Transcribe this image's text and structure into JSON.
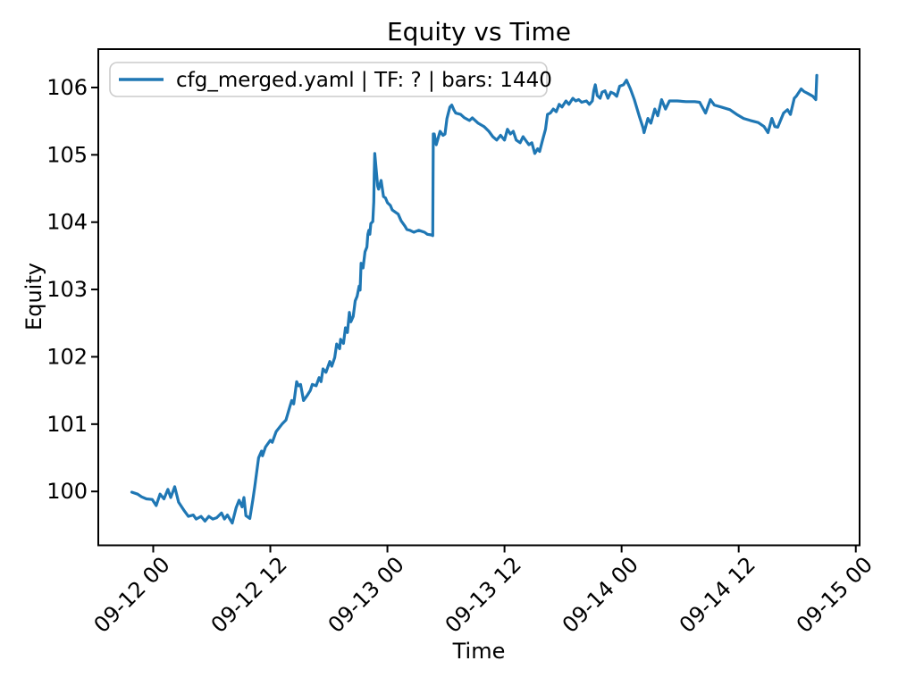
{
  "figure": {
    "background": "#ffffff",
    "spine_color": "#000000",
    "tick_color": "#000000",
    "legend_border_color": "#cccccc"
  },
  "chart_data": {
    "type": "line",
    "title": "Equity vs Time",
    "xlabel": "Time",
    "ylabel": "Equity",
    "legend_label": "cfg_merged.yaml | TF: ? | bars: 1440",
    "legend_position": "upper left",
    "grid": false,
    "line_color": "#1f77b4",
    "x_unit": "hours since 09-12 00:00",
    "xlim": [
      -5.63,
      72.39
    ],
    "ylim": [
      99.2,
      106.57
    ],
    "x_tick_positions": [
      0,
      12,
      24,
      36,
      48,
      60,
      72
    ],
    "x_tick_labels": [
      "09-12 00",
      "09-12 12",
      "09-13 00",
      "09-13 12",
      "09-14 00",
      "09-14 12",
      "09-15 00"
    ],
    "y_tick_positions": [
      100,
      101,
      102,
      103,
      104,
      105,
      106
    ],
    "y_tick_labels": [
      "100",
      "101",
      "102",
      "103",
      "104",
      "105",
      "106"
    ],
    "series": [
      {
        "name": "cfg_merged.yaml | TF: ? | bars: 1440",
        "color": "#1f77b4",
        "points": [
          [
            -2.2,
            99.99
          ],
          [
            -1.6,
            99.96
          ],
          [
            -1.2,
            99.92
          ],
          [
            -0.7,
            99.89
          ],
          [
            -0.1,
            99.88
          ],
          [
            0.3,
            99.79
          ],
          [
            0.7,
            99.96
          ],
          [
            1.1,
            99.89
          ],
          [
            1.5,
            100.03
          ],
          [
            1.8,
            99.91
          ],
          [
            2.2,
            100.07
          ],
          [
            2.6,
            99.84
          ],
          [
            3.2,
            99.71
          ],
          [
            3.6,
            99.63
          ],
          [
            4.1,
            99.65
          ],
          [
            4.4,
            99.59
          ],
          [
            4.9,
            99.63
          ],
          [
            5.3,
            99.56
          ],
          [
            5.7,
            99.63
          ],
          [
            6.1,
            99.59
          ],
          [
            6.5,
            99.61
          ],
          [
            7.0,
            99.68
          ],
          [
            7.3,
            99.59
          ],
          [
            7.6,
            99.65
          ],
          [
            8.1,
            99.53
          ],
          [
            8.5,
            99.76
          ],
          [
            8.8,
            99.87
          ],
          [
            9.1,
            99.77
          ],
          [
            9.3,
            99.91
          ],
          [
            9.5,
            99.64
          ],
          [
            9.9,
            99.6
          ],
          [
            10.2,
            99.87
          ],
          [
            10.4,
            100.07
          ],
          [
            10.8,
            100.5
          ],
          [
            11.1,
            100.6
          ],
          [
            11.2,
            100.53
          ],
          [
            11.5,
            100.66
          ],
          [
            12.0,
            100.76
          ],
          [
            12.2,
            100.73
          ],
          [
            12.6,
            100.89
          ],
          [
            13.2,
            101.0
          ],
          [
            13.6,
            101.06
          ],
          [
            14.0,
            101.26
          ],
          [
            14.2,
            101.35
          ],
          [
            14.4,
            101.3
          ],
          [
            14.7,
            101.63
          ],
          [
            14.9,
            101.57
          ],
          [
            15.1,
            101.59
          ],
          [
            15.4,
            101.35
          ],
          [
            15.8,
            101.43
          ],
          [
            16.1,
            101.5
          ],
          [
            16.3,
            101.59
          ],
          [
            16.7,
            101.57
          ],
          [
            17.0,
            101.69
          ],
          [
            17.2,
            101.63
          ],
          [
            17.4,
            101.82
          ],
          [
            17.7,
            101.77
          ],
          [
            18.1,
            101.93
          ],
          [
            18.3,
            101.86
          ],
          [
            18.6,
            101.99
          ],
          [
            18.8,
            102.19
          ],
          [
            19.1,
            102.12
          ],
          [
            19.2,
            102.26
          ],
          [
            19.5,
            102.2
          ],
          [
            19.7,
            102.43
          ],
          [
            19.9,
            102.36
          ],
          [
            20.1,
            102.66
          ],
          [
            20.25,
            102.52
          ],
          [
            20.5,
            102.6
          ],
          [
            20.7,
            102.83
          ],
          [
            20.9,
            102.9
          ],
          [
            21.1,
            103.05
          ],
          [
            21.2,
            102.99
          ],
          [
            21.3,
            103.39
          ],
          [
            21.5,
            103.32
          ],
          [
            21.7,
            103.56
          ],
          [
            21.9,
            103.63
          ],
          [
            22.0,
            103.82
          ],
          [
            22.1,
            103.88
          ],
          [
            22.2,
            103.82
          ],
          [
            22.3,
            103.98
          ],
          [
            22.5,
            104.01
          ],
          [
            22.6,
            104.3
          ],
          [
            22.65,
            104.71
          ],
          [
            22.7,
            105.02
          ],
          [
            22.9,
            104.69
          ],
          [
            23.0,
            104.54
          ],
          [
            23.1,
            104.49
          ],
          [
            23.35,
            104.62
          ],
          [
            23.6,
            104.38
          ],
          [
            23.8,
            104.36
          ],
          [
            24.0,
            104.29
          ],
          [
            24.3,
            104.25
          ],
          [
            24.5,
            104.18
          ],
          [
            24.9,
            104.14
          ],
          [
            25.1,
            104.12
          ],
          [
            25.4,
            104.02
          ],
          [
            25.8,
            103.94
          ],
          [
            26.0,
            103.89
          ],
          [
            26.3,
            103.88
          ],
          [
            26.7,
            103.85
          ],
          [
            27.2,
            103.88
          ],
          [
            27.8,
            103.85
          ],
          [
            28.1,
            103.82
          ],
          [
            28.5,
            103.81
          ],
          [
            28.65,
            103.8
          ],
          [
            28.7,
            105.31
          ],
          [
            28.8,
            105.31
          ],
          [
            29.0,
            105.15
          ],
          [
            29.4,
            105.35
          ],
          [
            29.7,
            105.29
          ],
          [
            29.9,
            105.31
          ],
          [
            30.1,
            105.54
          ],
          [
            30.4,
            105.71
          ],
          [
            30.6,
            105.74
          ],
          [
            30.8,
            105.67
          ],
          [
            31.0,
            105.62
          ],
          [
            31.5,
            105.6
          ],
          [
            31.9,
            105.55
          ],
          [
            32.4,
            105.51
          ],
          [
            32.7,
            105.55
          ],
          [
            33.3,
            105.47
          ],
          [
            33.9,
            105.42
          ],
          [
            34.4,
            105.35
          ],
          [
            34.8,
            105.27
          ],
          [
            35.2,
            105.22
          ],
          [
            35.6,
            105.29
          ],
          [
            36.0,
            105.22
          ],
          [
            36.3,
            105.38
          ],
          [
            36.6,
            105.31
          ],
          [
            36.9,
            105.35
          ],
          [
            37.2,
            105.22
          ],
          [
            37.6,
            105.18
          ],
          [
            37.9,
            105.27
          ],
          [
            38.2,
            105.21
          ],
          [
            38.5,
            105.15
          ],
          [
            38.8,
            105.18
          ],
          [
            39.1,
            105.02
          ],
          [
            39.4,
            105.09
          ],
          [
            39.6,
            105.05
          ],
          [
            39.9,
            105.22
          ],
          [
            40.2,
            105.38
          ],
          [
            40.4,
            105.6
          ],
          [
            40.7,
            105.62
          ],
          [
            41.0,
            105.68
          ],
          [
            41.3,
            105.64
          ],
          [
            41.6,
            105.75
          ],
          [
            41.9,
            105.71
          ],
          [
            42.3,
            105.8
          ],
          [
            42.6,
            105.75
          ],
          [
            43.0,
            105.84
          ],
          [
            43.3,
            105.8
          ],
          [
            43.6,
            105.82
          ],
          [
            43.9,
            105.78
          ],
          [
            44.4,
            105.8
          ],
          [
            44.7,
            105.75
          ],
          [
            45.0,
            105.8
          ],
          [
            45.15,
            105.95
          ],
          [
            45.3,
            106.04
          ],
          [
            45.5,
            105.88
          ],
          [
            45.8,
            105.84
          ],
          [
            46.0,
            105.93
          ],
          [
            46.3,
            105.95
          ],
          [
            46.6,
            105.84
          ],
          [
            46.9,
            105.93
          ],
          [
            47.2,
            105.91
          ],
          [
            47.5,
            105.87
          ],
          [
            47.8,
            106.02
          ],
          [
            48.2,
            106.04
          ],
          [
            48.5,
            106.11
          ],
          [
            48.9,
            105.98
          ],
          [
            49.3,
            105.82
          ],
          [
            49.8,
            105.58
          ],
          [
            50.2,
            105.4
          ],
          [
            50.3,
            105.33
          ],
          [
            50.7,
            105.54
          ],
          [
            51.0,
            105.47
          ],
          [
            51.4,
            105.68
          ],
          [
            51.7,
            105.58
          ],
          [
            52.1,
            105.82
          ],
          [
            52.5,
            105.68
          ],
          [
            52.9,
            105.8
          ],
          [
            53.7,
            105.8
          ],
          [
            54.6,
            105.79
          ],
          [
            55.5,
            105.79
          ],
          [
            56.0,
            105.78
          ],
          [
            56.6,
            105.62
          ],
          [
            57.1,
            105.82
          ],
          [
            57.5,
            105.74
          ],
          [
            58.2,
            105.71
          ],
          [
            59.1,
            105.67
          ],
          [
            59.8,
            105.6
          ],
          [
            60.5,
            105.54
          ],
          [
            61.2,
            105.51
          ],
          [
            62.0,
            105.48
          ],
          [
            62.6,
            105.42
          ],
          [
            63.0,
            105.33
          ],
          [
            63.4,
            105.54
          ],
          [
            63.7,
            105.42
          ],
          [
            64.0,
            105.41
          ],
          [
            64.6,
            105.62
          ],
          [
            65.0,
            105.67
          ],
          [
            65.3,
            105.6
          ],
          [
            65.7,
            105.84
          ],
          [
            65.9,
            105.87
          ],
          [
            66.4,
            105.98
          ],
          [
            66.7,
            105.94
          ],
          [
            67.1,
            105.91
          ],
          [
            67.6,
            105.87
          ],
          [
            67.9,
            105.82
          ],
          [
            68.0,
            106.18
          ]
        ]
      }
    ]
  }
}
